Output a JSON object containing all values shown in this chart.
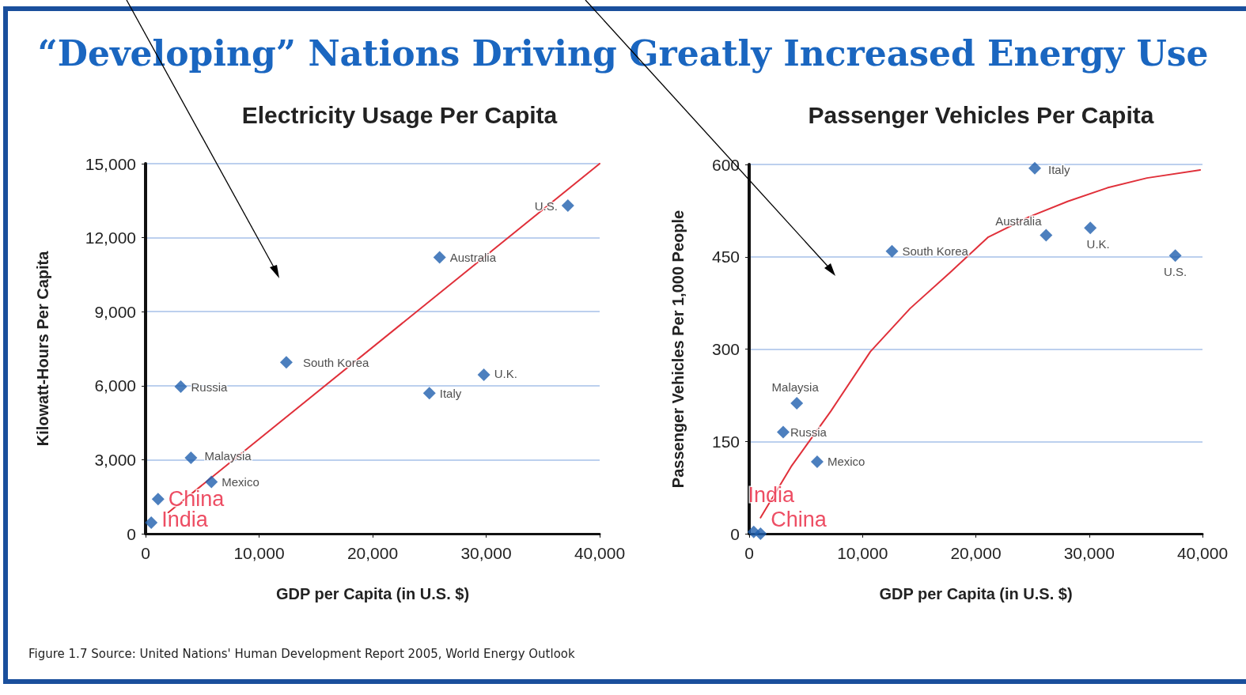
{
  "chart_data": [
    {
      "type": "scatter",
      "title": "Electricity Usage Per Capita",
      "xlabel": "GDP per Capita (in U.S. $)",
      "ylabel": "Kilowatt-Hours Per Capita",
      "annotations": [
        "“Developing” Nations Driving Greatly Increased Energy Use"
      ],
      "xlim": [
        0,
        40000
      ],
      "xticks": [
        0,
        {
          "value": 10000,
          "label": "10,000"
        },
        {
          "value": 20000,
          "label": "20,000"
        },
        {
          "value": 30000,
          "label": "30,000"
        },
        {
          "value": 40000,
          "label": "40,000"
        }
      ],
      "ylim": [
        0,
        15000
      ],
      "yticks": [
        0,
        {
          "value": 3000,
          "label": "3,000"
        },
        {
          "value": 6000,
          "label": "6,000"
        },
        {
          "value": 9000,
          "label": "9,000"
        },
        {
          "value": 12000,
          "label": "12,000"
        },
        {
          "value": 15000,
          "label": "15,000"
        }
      ],
      "grid": "y",
      "marker": "diamond",
      "series": [
        {
          "color": "#1f5fae",
          "x": [
            37200,
            25900,
            12400,
            3100,
            25000,
            29800,
            4000,
            5800
          ],
          "values": [
            13300,
            11200,
            6950,
            5960,
            5700,
            6440,
            3080,
            2100
          ],
          "value_labels": [
            "U.S.",
            "Australia",
            "South Korea",
            "Russia",
            "Italy",
            "U.K.",
            "Malaysia",
            "Mexico"
          ]
        },
        {
          "color": "#1f5fae",
          "x": [
            1100,
            500
          ],
          "values": [
            1400,
            450
          ],
          "value_labels": [
            "China",
            "India"
          ]
        },
        {
          "type": "line",
          "color": "#e0303a",
          "marker": "none",
          "x": [
            2000,
            40000
          ],
          "values": [
            860,
            15000
          ]
        }
      ]
    },
    {
      "type": "scatter",
      "title": "Passenger Vehicles Per Capita",
      "xlabel": "GDP per Capita (in U.S. $)",
      "ylabel": "Passenger Vehicles Per 1,000 People",
      "annotations": [
        "Figure 1.7  Source: United Nations' Human Development Report 2005, World Energy Outlook"
      ],
      "xlim": [
        0,
        40000
      ],
      "xticks": [
        0,
        {
          "value": 10000,
          "label": "10,000"
        },
        {
          "value": 20000,
          "label": "20,000"
        },
        {
          "value": 30000,
          "label": "30,000"
        },
        {
          "value": 40000,
          "label": "40,000"
        }
      ],
      "ylim": [
        0,
        600
      ],
      "yticks": [
        0,
        150,
        300,
        450,
        600
      ],
      "grid": "y",
      "marker": "diamond",
      "series": [
        {
          "color": "#1f5fae",
          "x": [
            25200,
            26200,
            30100,
            37600,
            12600,
            4200,
            3000,
            6000
          ],
          "values": [
            594,
            485,
            497,
            452,
            459,
            212,
            165,
            117
          ],
          "value_labels": [
            "Italy",
            "Australia",
            "U.K.",
            "U.S.",
            "South Korea",
            "Malaysia",
            "Russia",
            "Mexico"
          ]
        },
        {
          "color": "#1f5fae",
          "x": [
            400,
            1000
          ],
          "values": [
            3,
            0
          ],
          "value_labels": [
            "India",
            "China"
          ]
        },
        {
          "type": "line",
          "color": "#e0303a",
          "marker": "none",
          "x": [
            1000,
            3700,
            7200,
            10700,
            14200,
            17700,
            21100,
            24600,
            28100,
            31600,
            35100,
            39800
          ],
          "values": [
            26,
            109,
            199,
            296,
            366,
            424,
            482,
            514,
            540,
            562,
            578,
            591
          ]
        }
      ]
    }
  ]
}
